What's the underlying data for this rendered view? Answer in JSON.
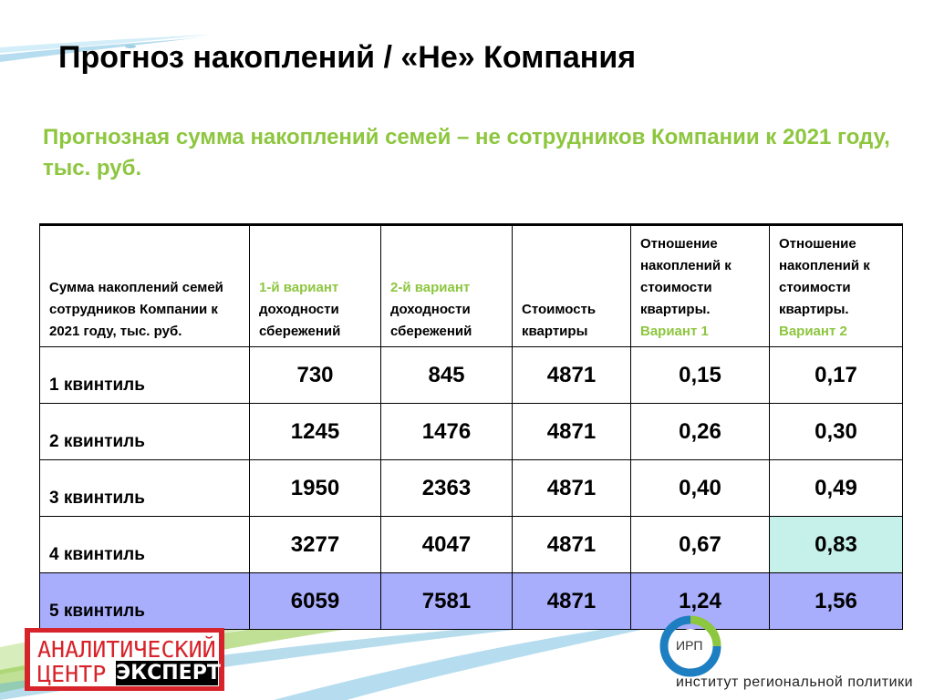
{
  "slide": {
    "title": "Прогноз накоплений / «Не» Компания",
    "subtitle": "Прогнозная сумма накоплений семей – не сотрудников Компании к 2021 году, тыс. руб."
  },
  "table": {
    "headers": {
      "col0": "Сумма накоплений семей сотрудников Компании к  2021 году, тыс. руб.",
      "col1_green": "1-й вариант",
      "col1_rest": "доходности сбережений",
      "col2_green": "2-й вариант",
      "col2_rest": "доходности сбережений",
      "col3": "Стоимость квартиры",
      "col4_black": "Отношение накоплений к стоимости квартиры.",
      "col4_green": "Вариант 1",
      "col5_black": "Отношение накоплений к стоимости квартиры.",
      "col5_green": "Вариант 2"
    },
    "rows": [
      {
        "label": "1 квинтиль",
        "v1": "730",
        "v2": "845",
        "cost": "4871",
        "r1": "0,15",
        "r2": "0,17"
      },
      {
        "label": "2 квинтиль",
        "v1": "1245",
        "v2": "1476",
        "cost": "4871",
        "r1": "0,26",
        "r2": "0,30"
      },
      {
        "label": "3 квинтиль",
        "v1": "1950",
        "v2": "2363",
        "cost": "4871",
        "r1": "0,40",
        "r2": "0,49"
      },
      {
        "label": "4 квинтиль",
        "v1": "3277",
        "v2": "4047",
        "cost": "4871",
        "r1": "0,67",
        "r2": "0,83"
      },
      {
        "label": "5 квинтиль",
        "v1": "6059",
        "v2": "7581",
        "cost": "4871",
        "r1": "1,24",
        "r2": "1,56"
      }
    ]
  },
  "logos": {
    "left_line1": "АНАЛИТИЧЕСКИЙ",
    "left_line2": "ЦЕНТР",
    "left_line2_bold": "ЭКСПЕРТ",
    "right_abbr": "ИРП",
    "right_name": "институт региональной политики"
  },
  "colors": {
    "accent_green": "#8dc63f",
    "highlight_row": "#a9aefc",
    "highlight_cell": "#c6f1ea",
    "logo_red": "#d7232a",
    "logo_blue": "#1d7fc1"
  }
}
